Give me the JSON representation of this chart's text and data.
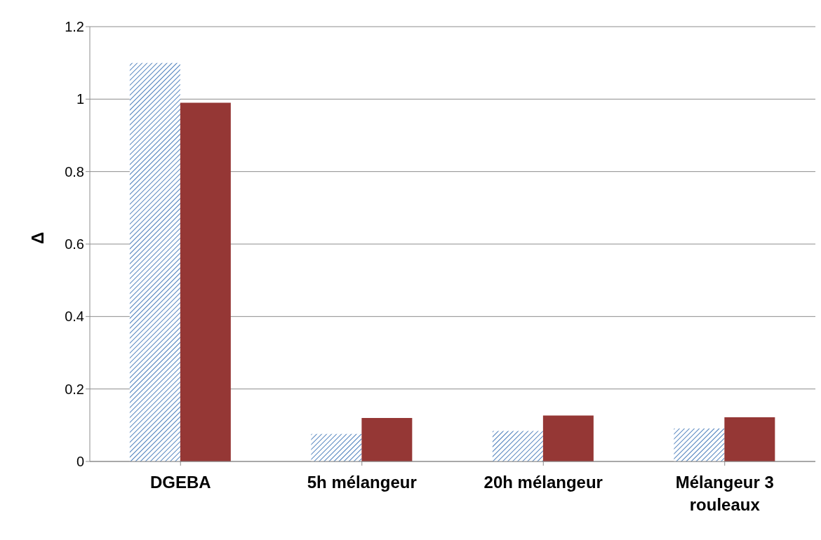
{
  "chart_data": {
    "type": "bar",
    "ylabel": "Δ",
    "categories": [
      "DGEBA",
      "5h mélangeur",
      "20h mélangeur",
      "Mélangeur 3 rouleaux"
    ],
    "series": [
      {
        "color": "#4f81bd",
        "values": [
          1.1,
          0.076,
          0.084,
          0.091
        ]
      },
      {
        "color": "#953735",
        "values": [
          0.99,
          0.12,
          0.127,
          0.122
        ]
      }
    ],
    "ylim": [
      0,
      1.2
    ],
    "yticks": [
      0,
      0.2,
      0.4,
      0.6,
      0.8,
      1,
      1.2
    ],
    "grid": "y"
  }
}
